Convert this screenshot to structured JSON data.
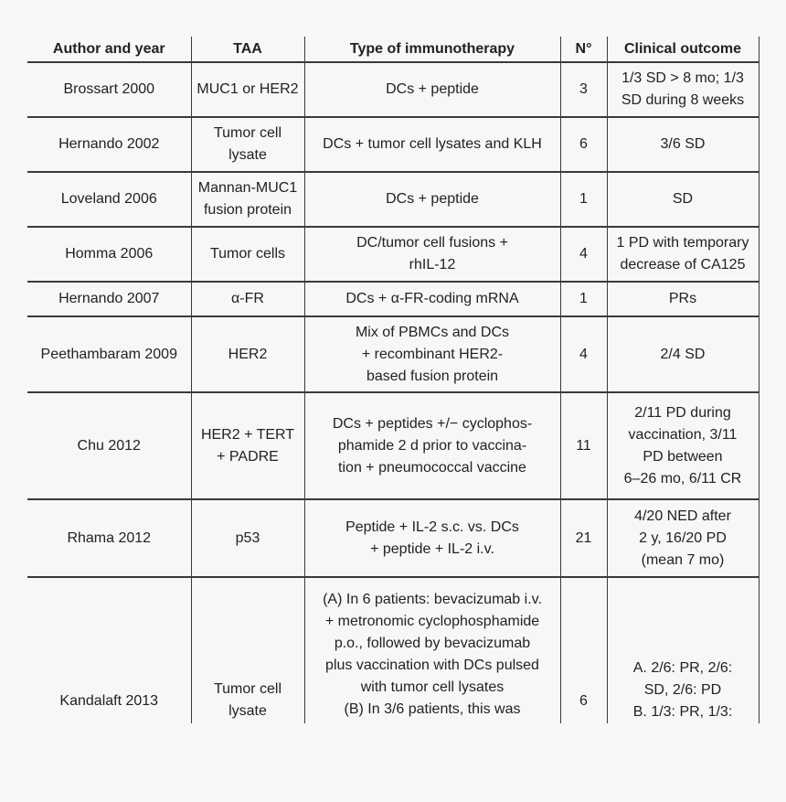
{
  "headers": [
    "Author and year",
    "TAA",
    "Type of immunotherapy",
    "N°",
    "Clinical outcome"
  ],
  "rows": [
    {
      "author": "Brossart 2000",
      "taa": [
        "MUC1 or HER2"
      ],
      "therapy": [
        "DCs + peptide"
      ],
      "n": "3",
      "outcome": [
        "1/3 SD > 8 mo; 1/3",
        "SD during 8 weeks"
      ]
    },
    {
      "author": "Hernando 2002",
      "taa": [
        "Tumor cell",
        "lysate"
      ],
      "therapy": [
        "DCs + tumor cell lysates and KLH"
      ],
      "n": "6",
      "outcome": [
        "3/6 SD"
      ]
    },
    {
      "author": "Loveland 2006",
      "taa": [
        "Mannan-MUC1",
        "fusion protein"
      ],
      "therapy": [
        "DCs + peptide"
      ],
      "n": "1",
      "outcome": [
        "SD"
      ]
    },
    {
      "author": "Homma 2006",
      "taa": [
        "Tumor cells"
      ],
      "therapy": [
        "DC/tumor cell fusions +",
        "rhIL-12"
      ],
      "n": "4",
      "outcome": [
        "1 PD with temporary",
        "decrease of CA125"
      ]
    },
    {
      "author": "Hernando 2007",
      "taa": [
        "α-FR"
      ],
      "therapy": [
        "DCs + α-FR-coding mRNA"
      ],
      "n": "1",
      "outcome": [
        "PRs"
      ]
    },
    {
      "author": "Peethambaram 2009",
      "taa": [
        "HER2"
      ],
      "therapy": [
        "Mix of PBMCs and DCs",
        "+ recombinant HER2-",
        "based fusion protein"
      ],
      "n": "4",
      "outcome": [
        "2/4 SD"
      ]
    },
    {
      "author": "Chu 2012",
      "taa": [
        "HER2 + TERT",
        "+ PADRE"
      ],
      "therapy": [
        "DCs + peptides +/− cyclophos-",
        "phamide 2 d prior to vaccina-",
        "tion + pneumococcal vaccine"
      ],
      "n": "11",
      "outcome": [
        "2/11 PD during",
        "vaccination, 3/11",
        "PD between",
        "6–26 mo, 6/11 CR"
      ]
    },
    {
      "author": "Rhama 2012",
      "taa": [
        "p53"
      ],
      "therapy": [
        "Peptide + IL-2 s.c. vs. DCs",
        "+ peptide + IL-2 i.v."
      ],
      "n": "21",
      "outcome": [
        "4/20 NED after",
        "2 y, 16/20 PD",
        "(mean 7 mo)"
      ]
    },
    {
      "author": "Kandalaft 2013",
      "taa": [
        "Tumor cell",
        "lysate"
      ],
      "therapy": [
        "(A) In 6 patients: bevacizumab i.v.",
        "+ metronomic cyclophosphamide",
        "p.o., followed by bevacizumab",
        "plus vaccination with DCs pulsed",
        "with tumor cell lysates",
        "(B) In 3/6 patients, this was"
      ],
      "n": "6",
      "outcome": [
        "A. 2/6: PR, 2/6:",
        "SD, 2/6: PD",
        "B. 1/3: PR, 1/3:"
      ]
    }
  ]
}
